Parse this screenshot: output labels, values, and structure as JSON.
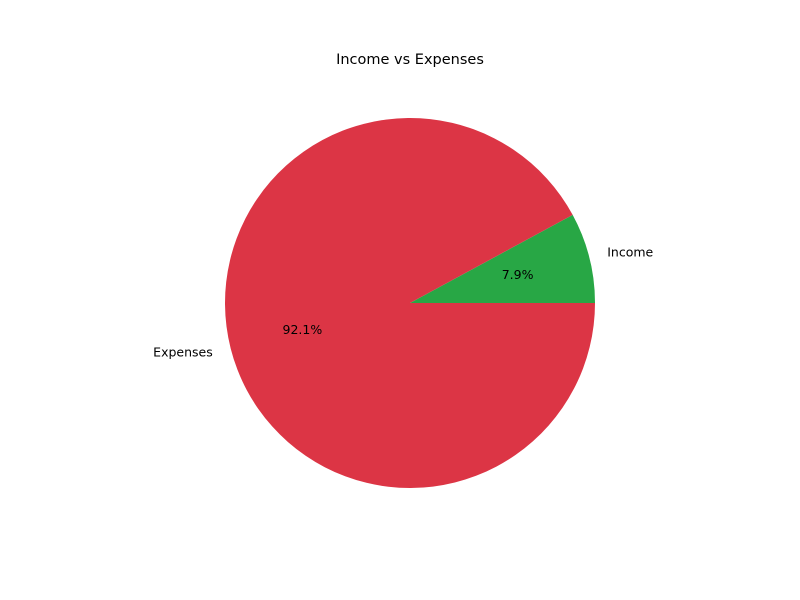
{
  "chart_data": {
    "type": "pie",
    "title": "Income vs Expenses",
    "slices": [
      {
        "label": "Income",
        "value": 7.9,
        "percent_label": "7.9%",
        "color": "#28a745"
      },
      {
        "label": "Expenses",
        "value": 92.1,
        "percent_label": "92.1%",
        "color": "#dc3545"
      }
    ],
    "start_angle_deg": 0,
    "direction": "counterclockwise",
    "legend": false
  }
}
